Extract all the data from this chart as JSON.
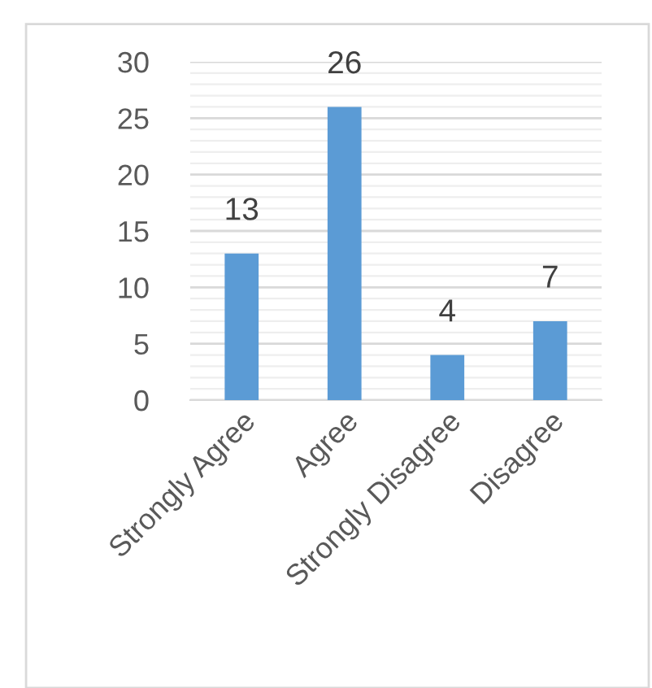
{
  "chart_data": {
    "type": "bar",
    "categories": [
      "Strongly Agree",
      "Agree",
      "Strongly Disagree",
      "Disagree"
    ],
    "values": [
      13,
      26,
      4,
      7
    ],
    "color": "#5b9bd5",
    "ylim": [
      0,
      30
    ],
    "yticks": [
      0,
      5,
      10,
      15,
      20,
      25,
      30
    ],
    "grid": "y",
    "data_labels": true
  }
}
